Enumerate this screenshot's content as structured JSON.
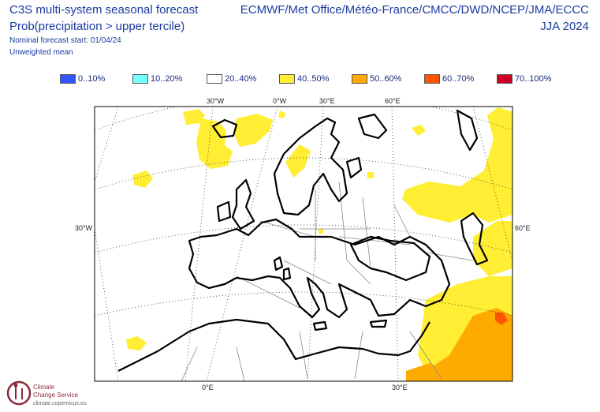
{
  "header": {
    "title_line1": "C3S multi-system seasonal forecast",
    "title_line2": "Prob(precipitation > upper tercile)",
    "note_start": "Nominal forecast start: 01/04/24",
    "note_mean": "Unweighted mean",
    "models": "ECMWF/Met Office/Météo-France/CMCC/DWD/NCEP/JMA/ECCC",
    "season": "JJA 2024"
  },
  "legend": [
    {
      "label": "0..10%",
      "color": "#3355ff"
    },
    {
      "label": "10..20%",
      "color": "#77ffff"
    },
    {
      "label": "20..40%",
      "color": "#ffffff"
    },
    {
      "label": "40..50%",
      "color": "#ffee33"
    },
    {
      "label": "50..60%",
      "color": "#ffaa00"
    },
    {
      "label": "60..70%",
      "color": "#ff5500"
    },
    {
      "label": "70..100%",
      "color": "#cc0022"
    }
  ],
  "map": {
    "top_labels": [
      "30°W",
      "0°W",
      "30°E",
      "60°E"
    ],
    "left_label": "30°W",
    "right_label": "60°E",
    "bottom_labels": [
      "0°E",
      "30°E"
    ]
  },
  "branding": {
    "line1": "Climate",
    "line2": "Change Service",
    "url": "climate.copernicus.eu"
  }
}
